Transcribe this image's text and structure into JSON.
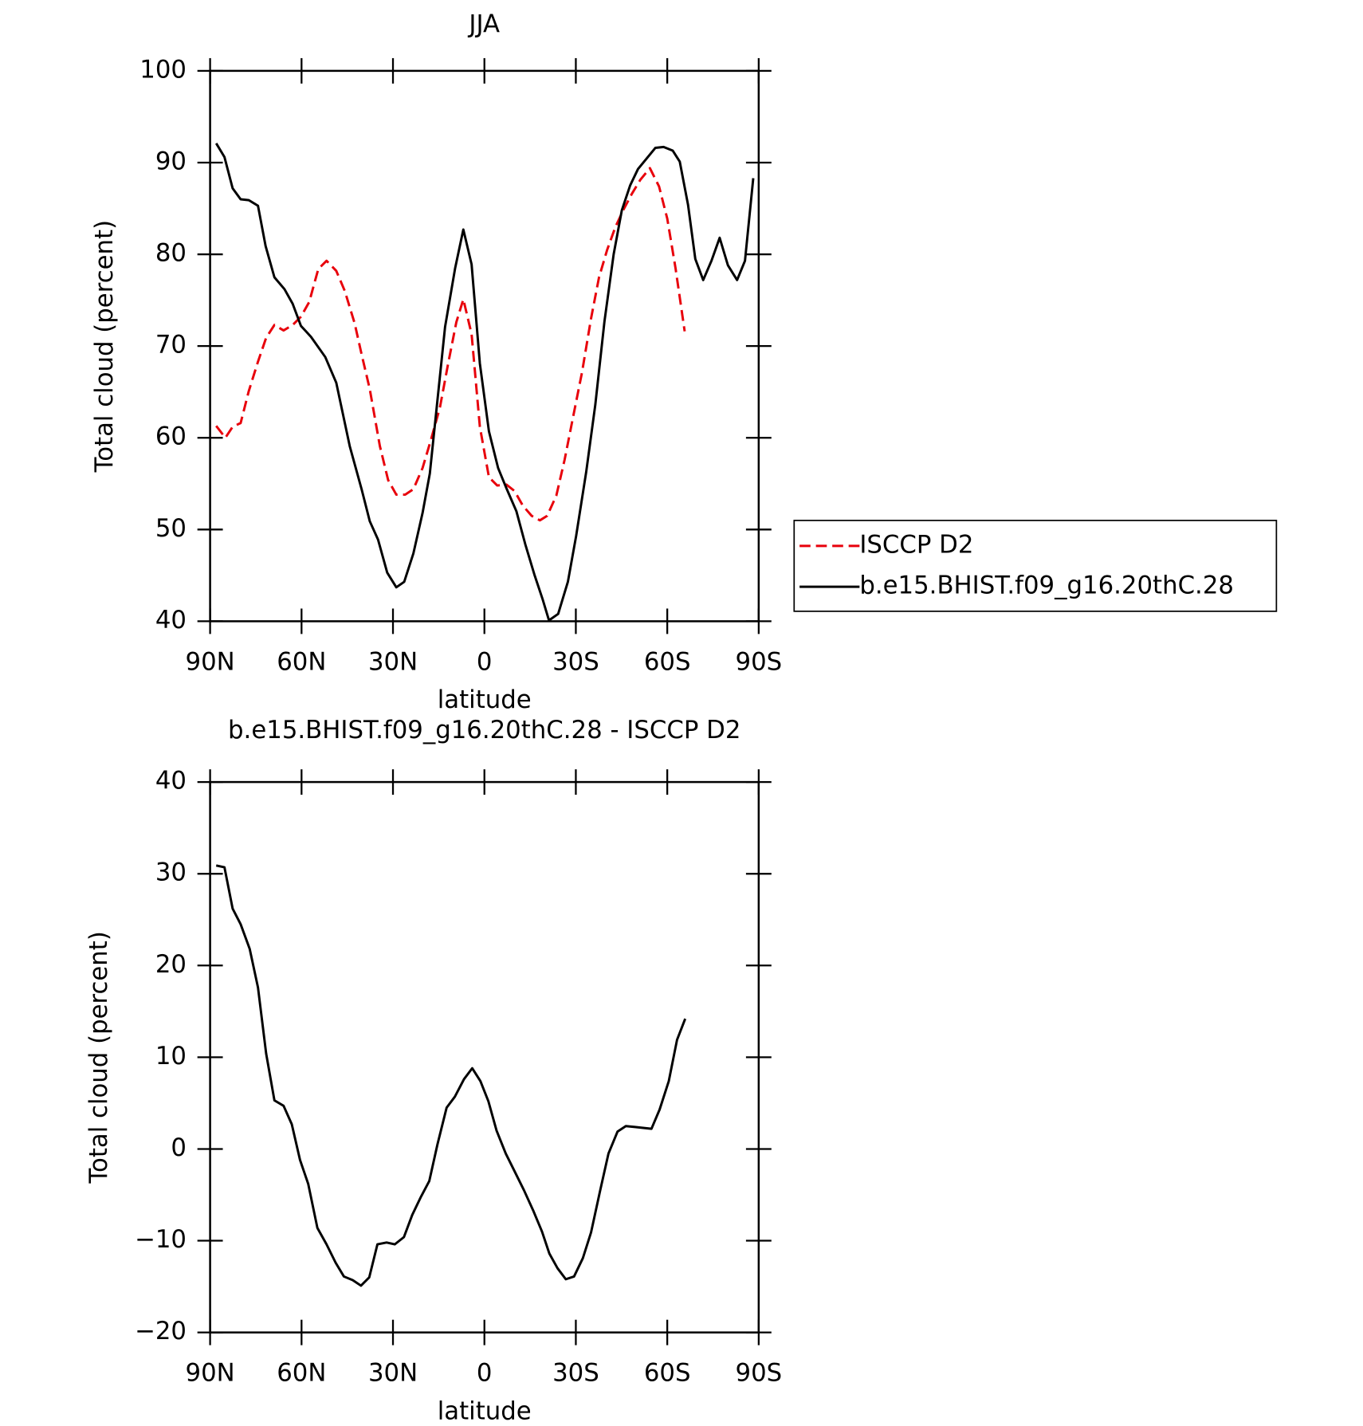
{
  "chart_data": [
    {
      "type": "line",
      "title": "JJA",
      "xlabel": "latitude",
      "ylabel": "Total cloud (percent)",
      "xlim": [
        90,
        -90
      ],
      "xticks": [
        {
          "value": 90,
          "label": "90N"
        },
        {
          "value": 60,
          "label": "60N"
        },
        {
          "value": 30,
          "label": "30N"
        },
        0,
        {
          "value": -30,
          "label": "30S"
        },
        {
          "value": -60,
          "label": "60S"
        },
        {
          "value": -90,
          "label": "90S"
        }
      ],
      "ylim": [
        40,
        100
      ],
      "yticks": [
        40,
        50,
        60,
        70,
        80,
        90,
        100
      ],
      "series": [
        {
          "name": "ISCCP D2",
          "color": "#e8000b",
          "linestyle": "dashed",
          "x": [
            88,
            85,
            82.6,
            80,
            77.3,
            74.3,
            71.6,
            68.9,
            65.9,
            62.9,
            60.2,
            57.5,
            54.5,
            51.8,
            48.6,
            45.8,
            42.6,
            40.3,
            37.6,
            34.3,
            31.6,
            28.9,
            26,
            23.3,
            20.3,
            17.6,
            14.6,
            11.9,
            9.2,
            6.9,
            4.2,
            1.5,
            -1.5,
            -4.2,
            -7.2,
            -9.9,
            -12.6,
            -15.5,
            -18.2,
            -20.6,
            -23.6,
            -26.3,
            -29,
            -32,
            -35,
            -37.6,
            -40.3,
            -43,
            -45.7,
            -48.4,
            -51.1,
            -54.3,
            -57.3,
            -60,
            -62.7,
            -65.7
          ],
          "values": [
            61.3,
            60,
            61.2,
            61.6,
            65.1,
            68.3,
            70.9,
            72.3,
            71.7,
            72.3,
            73.2,
            74.8,
            78.4,
            79.3,
            78.2,
            76,
            72.5,
            69.1,
            65.3,
            59.1,
            55.4,
            53.8,
            53.8,
            54.4,
            56.7,
            59.7,
            63.3,
            68.1,
            72.6,
            75.1,
            71.3,
            61.2,
            55.7,
            54.8,
            54.9,
            54.2,
            52.6,
            51.5,
            51,
            51.5,
            53.7,
            57.6,
            62.1,
            67.1,
            73,
            77.5,
            80.5,
            83,
            84.9,
            86.6,
            88.1,
            89.4,
            87.4,
            83.9,
            78.5,
            71.6
          ]
        },
        {
          "name": "b.e15.BHIST.f09_g16.20thC.28",
          "color": "#000000",
          "linestyle": "solid",
          "x": [
            88,
            85.3,
            82.6,
            80,
            77.3,
            74.3,
            71.8,
            68.9,
            65.6,
            62.9,
            60.2,
            56.9,
            52.2,
            48.6,
            44.2,
            40.3,
            37.6,
            34.9,
            31.9,
            28.9,
            26.3,
            23.3,
            20.3,
            17.9,
            12.9,
            9.6,
            6.9,
            4.2,
            1.5,
            -1.5,
            -4.5,
            -7.2,
            -10.5,
            -13.4,
            -16.4,
            -19.1,
            -21.2,
            -24.2,
            -27.4,
            -30.1,
            -33.4,
            -36.4,
            -39.4,
            -42.4,
            -45.1,
            -47.8,
            -50.4,
            -53.1,
            -56.1,
            -58.8,
            -61.8,
            -64.1,
            -66.8,
            -69.2,
            -71.8,
            -74.5,
            -77.2,
            -79.9,
            -82.9,
            -85.5,
            -88.2
          ],
          "values": [
            92.1,
            90.6,
            87.2,
            86,
            85.9,
            85.3,
            80.9,
            77.5,
            76.2,
            74.6,
            72.2,
            71,
            68.8,
            66,
            59.1,
            54.4,
            50.9,
            48.9,
            45.3,
            43.7,
            44.3,
            47.4,
            51.8,
            56.1,
            72.1,
            78.5,
            82.7,
            78.9,
            68.1,
            60.7,
            56.7,
            54.5,
            52,
            48.4,
            45.1,
            42.4,
            40.1,
            40.8,
            44.3,
            49.3,
            56.3,
            63.6,
            72.7,
            80,
            84.8,
            87.5,
            89.3,
            90.4,
            91.6,
            91.7,
            91.3,
            90.1,
            85.4,
            79.5,
            77.2,
            79.3,
            81.8,
            78.8,
            77.2,
            79.3,
            88.3
          ]
        }
      ]
    },
    {
      "type": "line",
      "title": "b.e15.BHIST.f09_g16.20thC.28 - ISCCP D2",
      "xlabel": "latitude",
      "ylabel": "Total cloud (percent)",
      "xlim": [
        90,
        -90
      ],
      "xticks": [
        {
          "value": 90,
          "label": "90N"
        },
        {
          "value": 60,
          "label": "60N"
        },
        {
          "value": 30,
          "label": "30N"
        },
        0,
        {
          "value": -30,
          "label": "30S"
        },
        {
          "value": -60,
          "label": "60S"
        },
        {
          "value": -90,
          "label": "90S"
        }
      ],
      "ylim": [
        -20,
        40
      ],
      "yticks": [
        {
          "value": -20,
          "label": "−20"
        },
        {
          "value": -10,
          "label": "−10"
        },
        0,
        10,
        20,
        30,
        40
      ],
      "series": [
        {
          "color": "#000000",
          "linestyle": "solid",
          "x": [
            88,
            85.3,
            82.6,
            80,
            77,
            74.3,
            71.6,
            68.9,
            65.9,
            63.2,
            60.5,
            57.8,
            54.8,
            51.8,
            48.8,
            46.1,
            43.2,
            40.5,
            37.8,
            35.1,
            32.1,
            29.4,
            26.4,
            23.7,
            20.8,
            18.1,
            15.4,
            12.4,
            9.7,
            6.7,
            4,
            1.3,
            -1.3,
            -4,
            -7,
            -10,
            -13,
            -16,
            -18.9,
            -21.3,
            -24,
            -26.7,
            -29.4,
            -32.3,
            -35,
            -38,
            -40.7,
            -43.7,
            -46.4,
            -49.4,
            -52.1,
            -54.8,
            -57.5,
            -60.5,
            -63.2,
            -65.9
          ],
          "values": [
            30.9,
            30.7,
            26.2,
            24.5,
            21.8,
            17.6,
            10.4,
            5.3,
            4.7,
            2.7,
            -1.2,
            -3.8,
            -8.6,
            -10.4,
            -12.4,
            -13.9,
            -14.3,
            -14.9,
            -14,
            -10.4,
            -10.2,
            -10.4,
            -9.6,
            -7.2,
            -5.2,
            -3.5,
            0.5,
            4.5,
            5.7,
            7.6,
            8.8,
            7.4,
            5.2,
            2,
            -0.5,
            -2.5,
            -4.5,
            -6.7,
            -9,
            -11.4,
            -13,
            -14.2,
            -13.9,
            -11.9,
            -9.1,
            -4.5,
            -0.5,
            1.9,
            2.5,
            2.4,
            2.3,
            2.2,
            4.3,
            7.4,
            11.9,
            14.2
          ]
        }
      ]
    }
  ]
}
